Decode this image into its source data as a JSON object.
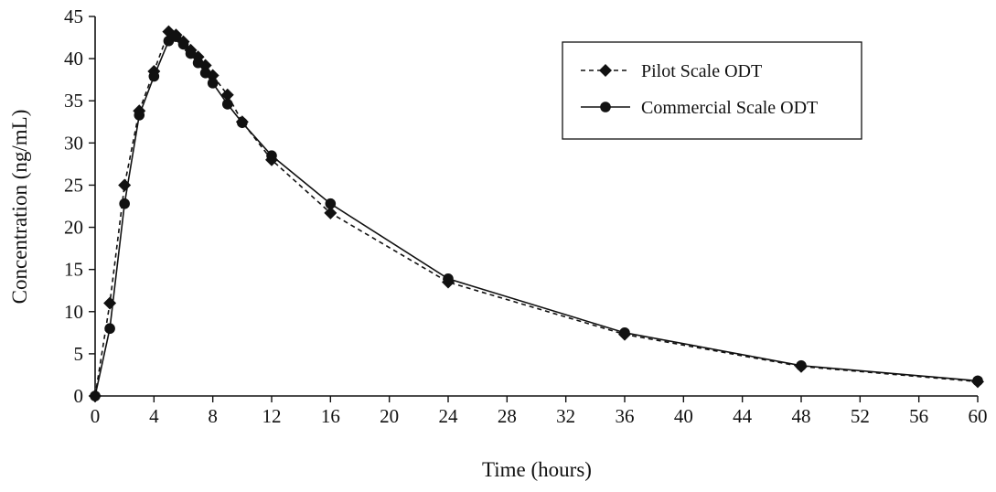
{
  "chart_data": {
    "type": "line",
    "xlabel": "Time (hours)",
    "ylabel": "Concentration (ng/mL)",
    "xlim": [
      0,
      60
    ],
    "ylim": [
      0,
      45
    ],
    "x_ticks": [
      0,
      4,
      8,
      12,
      16,
      20,
      24,
      28,
      32,
      36,
      40,
      44,
      48,
      52,
      56,
      60
    ],
    "y_ticks": [
      0,
      5,
      10,
      15,
      20,
      25,
      30,
      35,
      40,
      45
    ],
    "grid": false,
    "legend_position": "top-right",
    "series": [
      {
        "name": "Pilot Scale ODT",
        "marker": "diamond",
        "line_style": "dashed",
        "color": "#111111",
        "x": [
          0,
          1,
          2,
          3,
          4,
          5,
          5.5,
          6,
          6.5,
          7,
          7.5,
          8,
          9,
          10,
          12,
          16,
          24,
          36,
          48,
          60
        ],
        "y": [
          0,
          11.0,
          25.0,
          33.8,
          38.5,
          43.2,
          42.8,
          42.0,
          41.0,
          40.2,
          39.2,
          38.0,
          35.7,
          32.5,
          28.0,
          21.7,
          13.5,
          7.3,
          3.5,
          1.7
        ]
      },
      {
        "name": "Commercial Scale ODT",
        "marker": "circle",
        "line_style": "solid",
        "color": "#111111",
        "x": [
          0,
          1,
          2,
          3,
          4,
          5,
          5.5,
          6,
          6.5,
          7,
          7.5,
          8,
          9,
          10,
          12,
          16,
          24,
          36,
          48,
          60
        ],
        "y": [
          0,
          8.0,
          22.8,
          33.3,
          37.9,
          42.1,
          42.6,
          41.7,
          40.6,
          39.5,
          38.3,
          37.1,
          34.6,
          32.4,
          28.5,
          22.8,
          13.9,
          7.5,
          3.6,
          1.8
        ]
      }
    ]
  }
}
